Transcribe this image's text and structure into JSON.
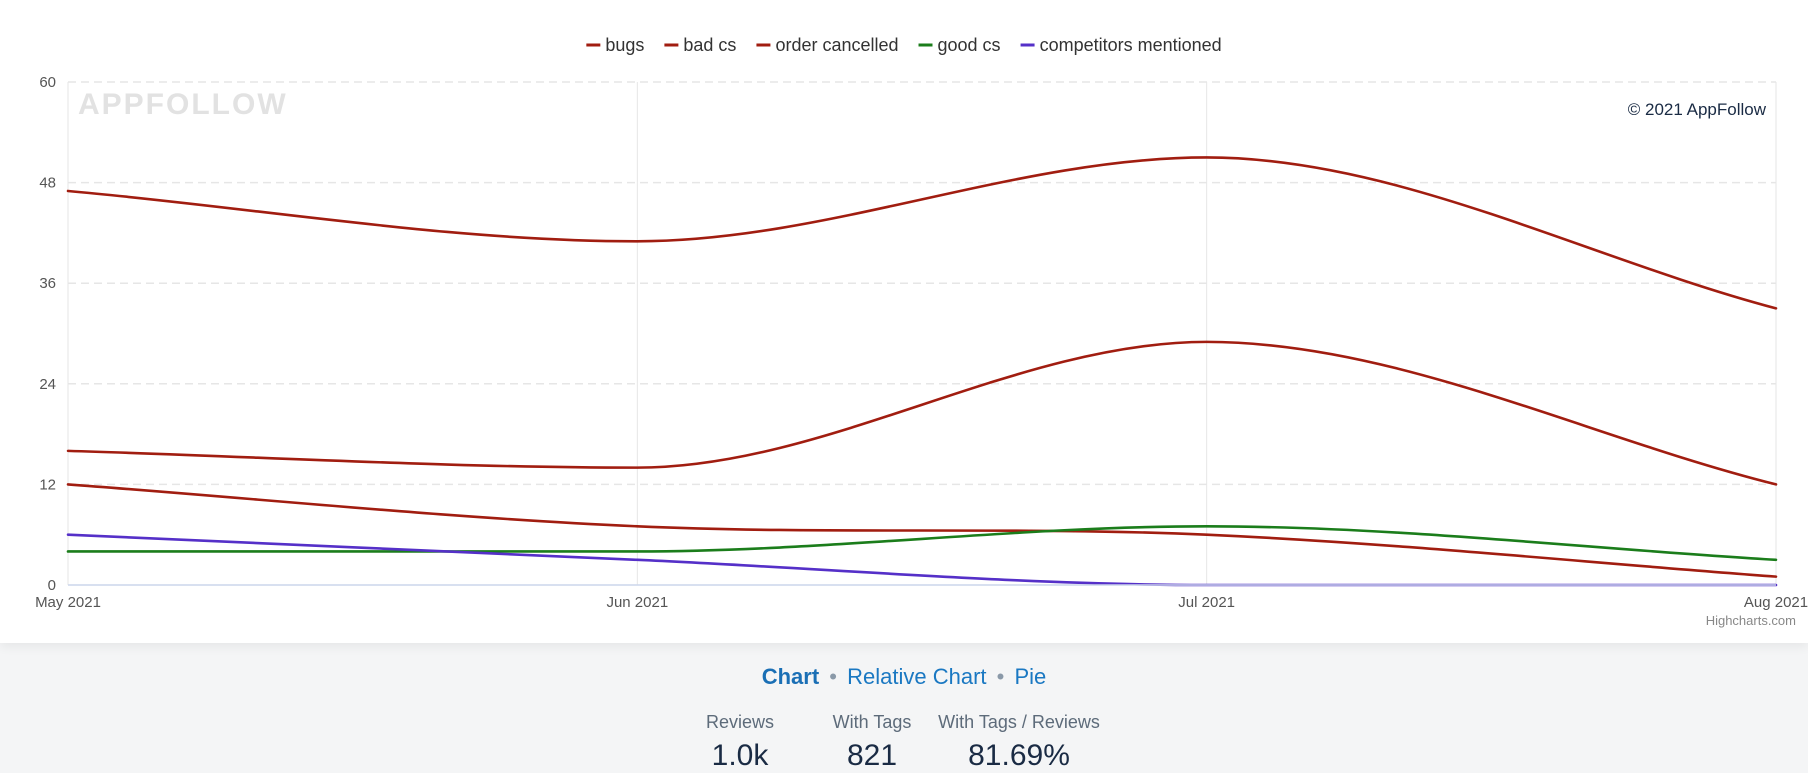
{
  "chart_data": {
    "type": "line",
    "x": [
      "May 2021",
      "Jun 2021",
      "Jul 2021",
      "Aug 2021"
    ],
    "ylim": [
      0,
      60
    ],
    "yticks": [
      "0",
      "12",
      "24",
      "36",
      "48",
      "60"
    ],
    "grid": true,
    "legend_position": "top-center",
    "series": [
      {
        "name": "bugs",
        "color": "#a11d10",
        "values": [
          47,
          41,
          51,
          33
        ]
      },
      {
        "name": "bad cs",
        "color": "#a11d10",
        "values": [
          16,
          14,
          29,
          12
        ]
      },
      {
        "name": "order cancelled",
        "color": "#a11d10",
        "values": [
          12,
          7,
          6,
          1
        ]
      },
      {
        "name": "good cs",
        "color": "#1b7d1b",
        "values": [
          4,
          4,
          7,
          3
        ]
      },
      {
        "name": "competitors mentioned",
        "color": "#5530c8",
        "values": [
          6,
          3,
          0,
          0
        ]
      }
    ]
  },
  "watermark": "APPFOLLOW",
  "copyright": "© 2021 AppFollow",
  "credits": "Highcharts.com",
  "view_switch": {
    "chart": "Chart",
    "relative": "Relative Chart",
    "pie": "Pie",
    "separator": "•"
  },
  "stats": [
    {
      "label": "Reviews",
      "value": "1.0k"
    },
    {
      "label": "With Tags",
      "value": "821"
    },
    {
      "label": "With Tags / Reviews",
      "value": "81.69%"
    }
  ]
}
